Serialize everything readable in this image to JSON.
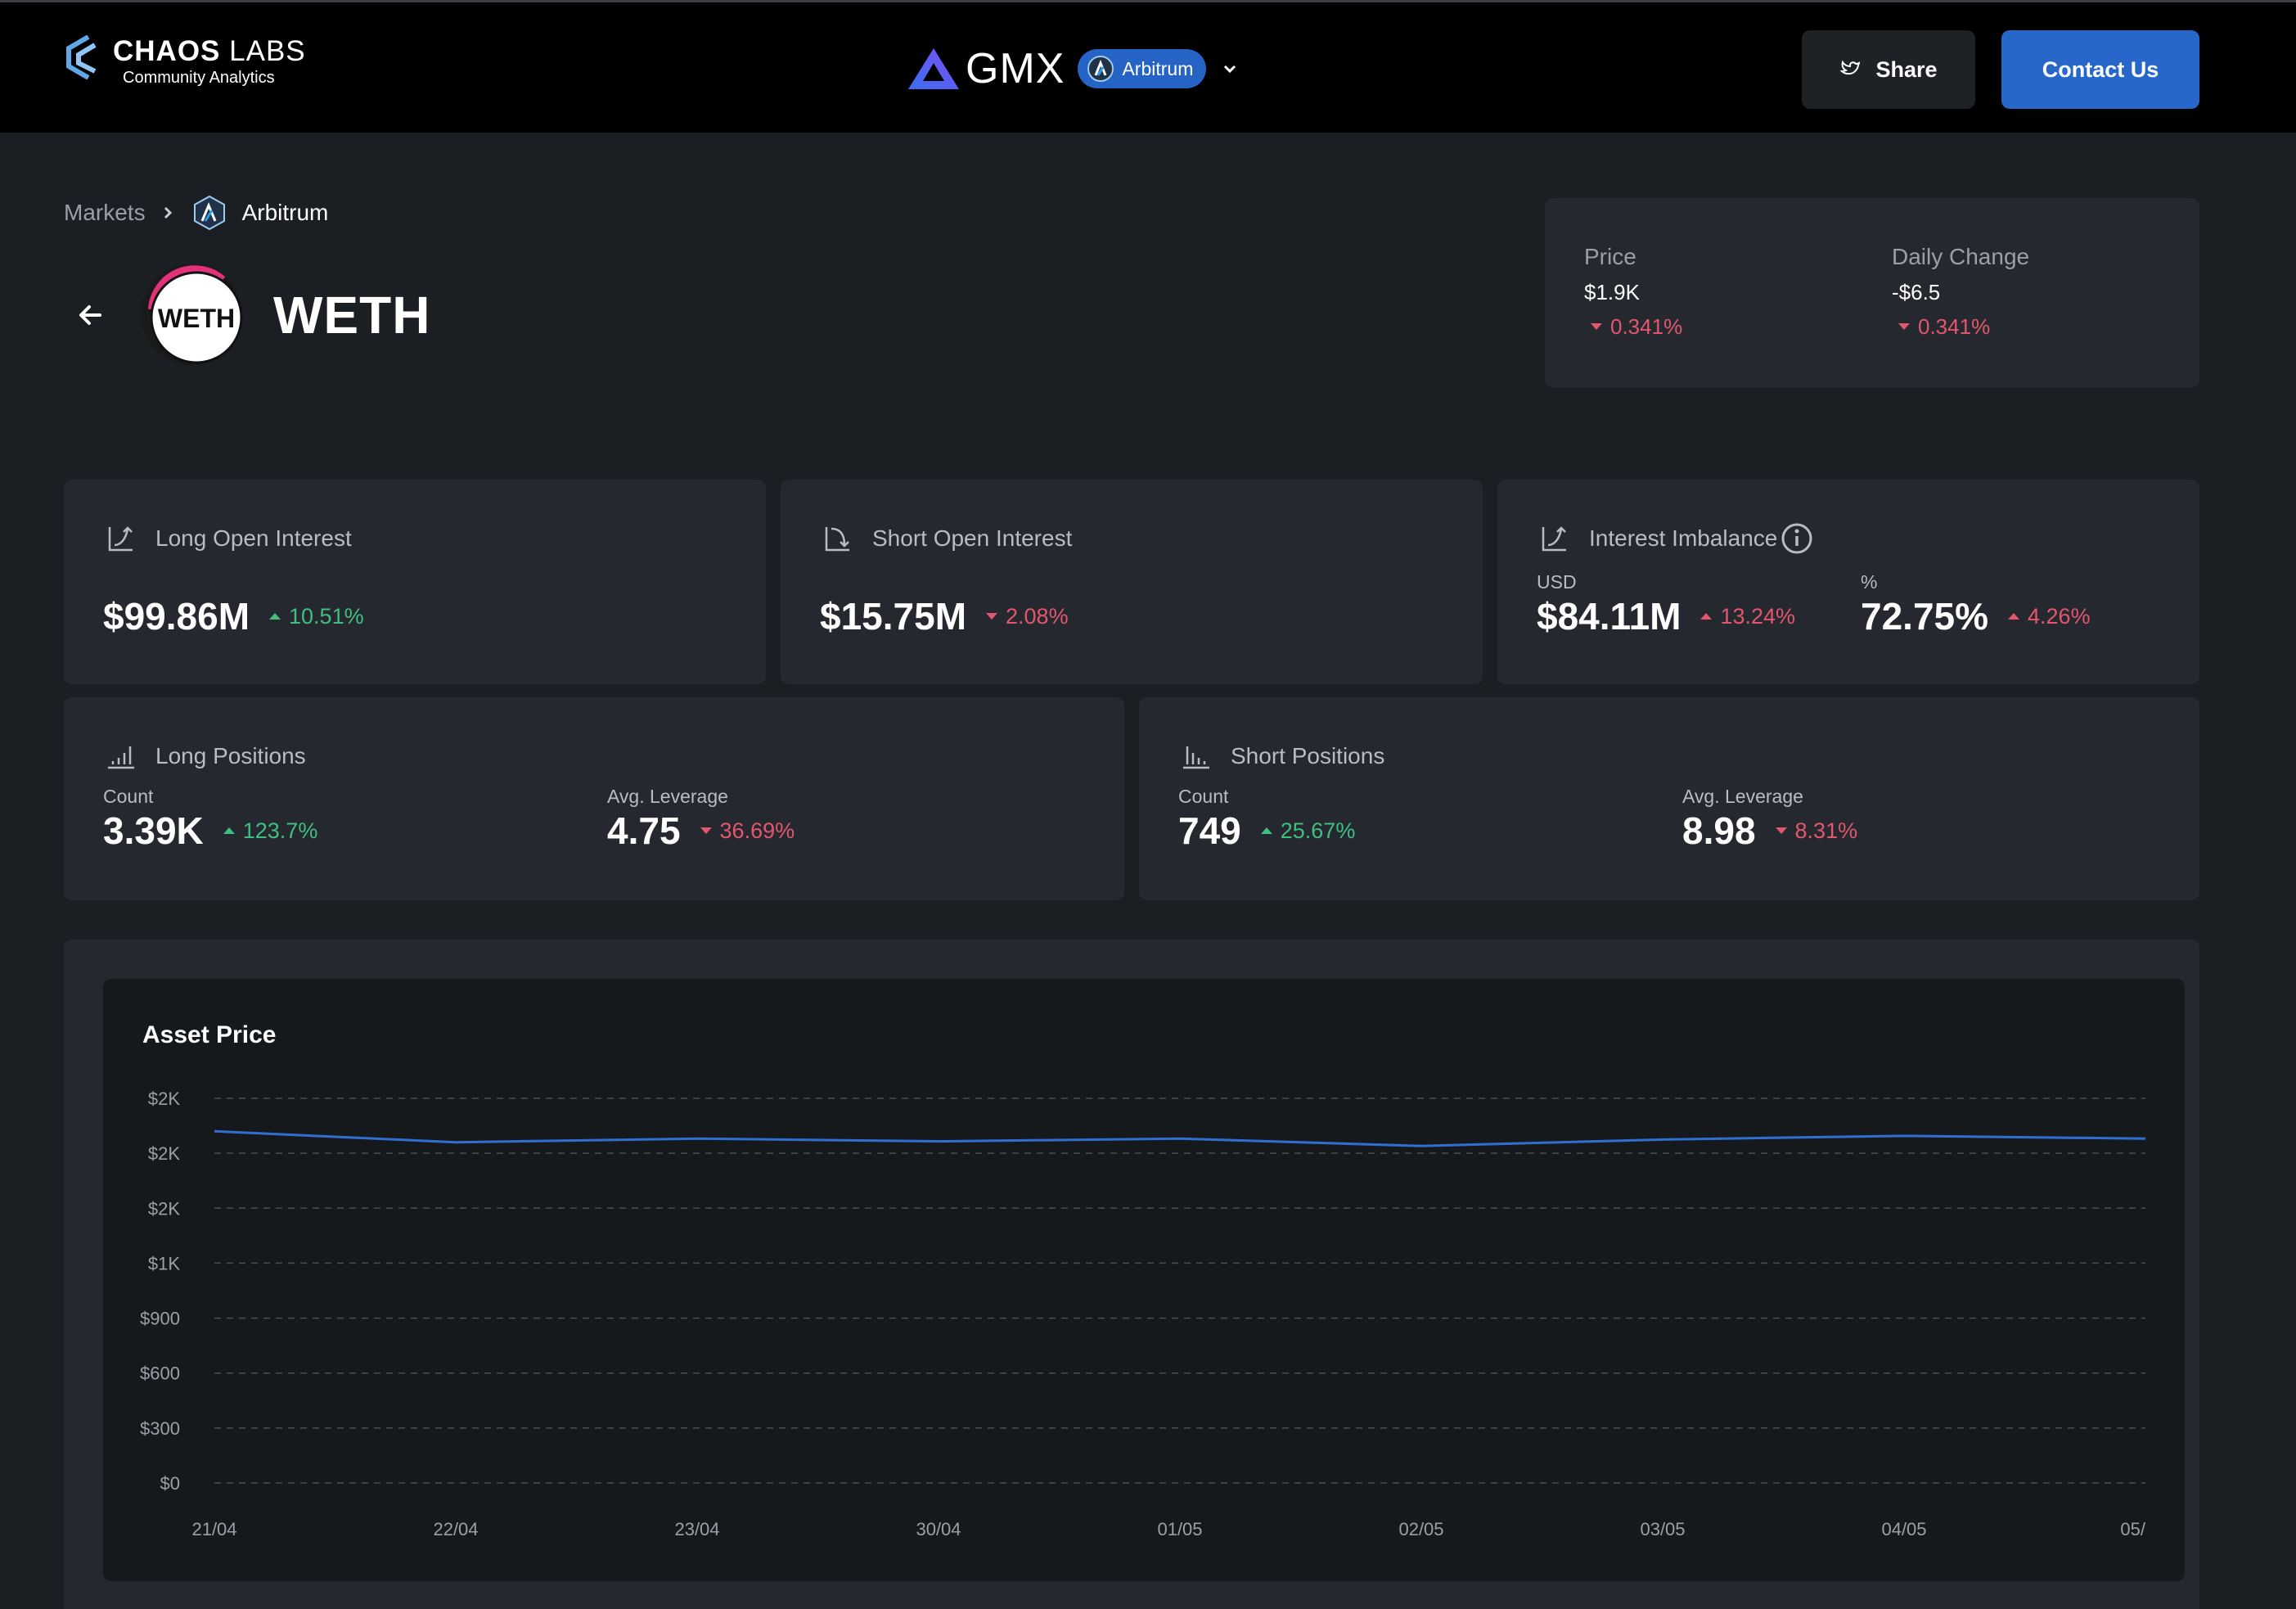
{
  "header": {
    "brand_name": "CHAOS",
    "brand_name_thin": "LABS",
    "brand_sub": "Community Analytics",
    "protocol": "GMX",
    "chain": "Arbitrum",
    "share_label": "Share",
    "contact_label": "Contact Us"
  },
  "breadcrumb": {
    "root": "Markets",
    "current": "Arbitrum"
  },
  "asset": {
    "symbol": "WETH",
    "logo_text": "WETH"
  },
  "price_box": {
    "price_label": "Price",
    "price_value": "$1.9K",
    "price_change": "0.341%",
    "daily_label": "Daily Change",
    "daily_value": "-$6.5",
    "daily_change": "0.341%"
  },
  "cards": {
    "long_oi": {
      "label": "Long Open Interest",
      "value": "$99.86M",
      "change": "10.51%",
      "direction": "up"
    },
    "short_oi": {
      "label": "Short Open Interest",
      "value": "$15.75M",
      "change": "2.08%",
      "direction": "down"
    },
    "imbalance": {
      "label": "Interest Imbalance",
      "usd_label": "USD",
      "usd_value": "$84.11M",
      "usd_change": "13.24%",
      "pct_label": "%",
      "pct_value": "72.75%",
      "pct_change": "4.26%"
    },
    "long_positions": {
      "label": "Long Positions",
      "count_label": "Count",
      "count_value": "3.39K",
      "count_change": "123.7%",
      "lev_label": "Avg. Leverage",
      "lev_value": "4.75",
      "lev_change": "36.69%"
    },
    "short_positions": {
      "label": "Short Positions",
      "count_label": "Count",
      "count_value": "749",
      "count_change": "25.67%",
      "lev_label": "Avg. Leverage",
      "lev_value": "8.98",
      "lev_change": "8.31%"
    }
  },
  "colors": {
    "up": "#3fbf80",
    "down": "#e2576e",
    "accent": "#2667c9",
    "line": "#2f6fd1"
  },
  "chart_data": {
    "type": "line",
    "title": "Asset Price",
    "xlabel": "",
    "ylabel": "",
    "x": [
      "21/04",
      "22/04",
      "23/04",
      "30/04",
      "01/05",
      "02/05",
      "03/05",
      "04/05",
      "05/"
    ],
    "series": [
      {
        "values": [
          1920,
          1860,
          1880,
          1865,
          1880,
          1840,
          1875,
          1895,
          1880
        ]
      }
    ],
    "y_ticks": [
      "$0",
      "$300",
      "$600",
      "$900",
      "$1K",
      "$2K",
      "$2K",
      "$2K"
    ],
    "ylim": [
      0,
      2100
    ],
    "grid": true
  }
}
